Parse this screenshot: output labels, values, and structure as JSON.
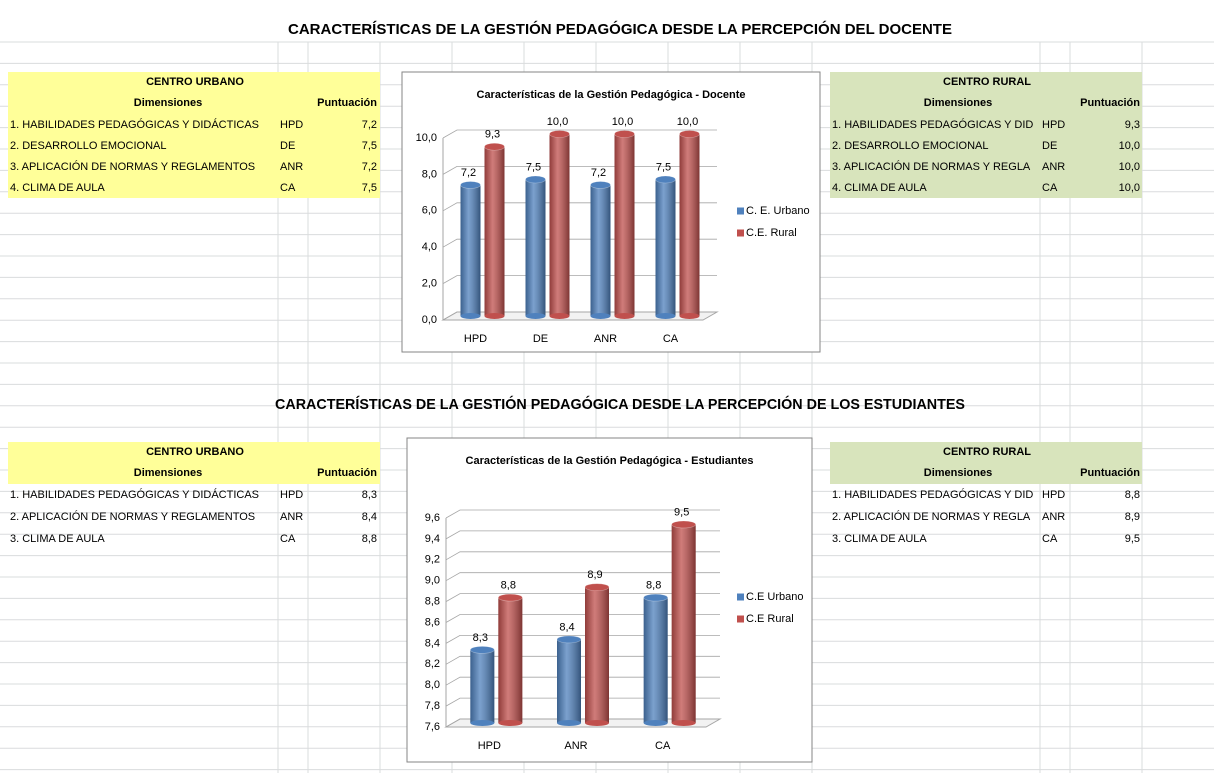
{
  "sections": [
    {
      "title": "CARACTERÍSTICAS DE LA GESTIÓN PEDAGÓGICA DESDE LA PERCEPCIÓN DEL DOCENTE",
      "urban": {
        "heading": "CENTRO URBANO",
        "columns": [
          "Dimensiones",
          "Puntuación"
        ],
        "rows": [
          [
            "1. HABILIDADES PEDAGÓGICAS Y DIDÁCTICAS",
            "HPD",
            "7,2"
          ],
          [
            "2. DESARROLLO EMOCIONAL",
            "DE",
            "7,5"
          ],
          [
            "3. APLICACIÓN DE NORMAS Y REGLAMENTOS",
            "ANR",
            "7,2"
          ],
          [
            "4. CLIMA DE AULA",
            "CA",
            "7,5"
          ]
        ]
      },
      "rural": {
        "heading": "CENTRO RURAL",
        "columns": [
          "Dimensiones",
          "Puntuación"
        ],
        "rows": [
          [
            "1. HABILIDADES PEDAGÓGICAS Y DID",
            "HPD",
            "9,3"
          ],
          [
            "2. DESARROLLO EMOCIONAL",
            "DE",
            "10,0"
          ],
          [
            "3. APLICACIÓN DE NORMAS Y REGLA",
            "ANR",
            "10,0"
          ],
          [
            "4. CLIMA DE AULA",
            "CA",
            "10,0"
          ]
        ]
      }
    },
    {
      "title": "CARACTERÍSTICAS DE LA GESTIÓN PEDAGÓGICA DESDE LA PERCEPCIÓN DE LOS ESTUDIANTES",
      "urban": {
        "heading": "CENTRO URBANO",
        "columns": [
          "Dimensiones",
          "Puntuación"
        ],
        "rows": [
          [
            "1. HABILIDADES PEDAGÓGICAS Y DIDÁCTICAS",
            "HPD",
            "8,3"
          ],
          [
            "2. APLICACIÓN DE NORMAS Y REGLAMENTOS",
            "ANR",
            "8,4"
          ],
          [
            "3. CLIMA DE AULA",
            "CA",
            "8,8"
          ]
        ]
      },
      "rural": {
        "heading": "CENTRO RURAL",
        "columns": [
          "Dimensiones",
          "Puntuación"
        ],
        "rows": [
          [
            "1. HABILIDADES PEDAGÓGICAS Y DID",
            "HPD",
            "8,8"
          ],
          [
            "2. APLICACIÓN DE NORMAS Y REGLA",
            "ANR",
            "8,9"
          ],
          [
            "3. CLIMA DE AULA",
            "CA",
            "9,5"
          ]
        ]
      }
    }
  ],
  "chart_data": [
    {
      "type": "bar",
      "title": "Características de la Gestión Pedagógica - Docente",
      "categories": [
        "HPD",
        "DE",
        "ANR",
        "CA"
      ],
      "series": [
        {
          "name": "C. E. Urbano",
          "color": "#4f81bd",
          "values": [
            7.2,
            7.5,
            7.2,
            7.5
          ],
          "value_labels": [
            "7,2",
            "7,5",
            "7,2",
            "7,5"
          ]
        },
        {
          "name": "C.E. Rural",
          "color": "#c0504d",
          "values": [
            9.3,
            10,
            10,
            10
          ],
          "value_labels": [
            "9,3",
            "10,0",
            "10,0",
            "10,0"
          ]
        }
      ],
      "ylim": [
        0,
        10
      ],
      "yticks": [
        {
          "value": 0,
          "label": "0,0"
        },
        {
          "value": 2,
          "label": "2,0"
        },
        {
          "value": 4,
          "label": "4,0"
        },
        {
          "value": 6,
          "label": "6,0"
        },
        {
          "value": 8,
          "label": "8,0"
        },
        {
          "value": 10,
          "label": "10,0"
        }
      ],
      "grid": true,
      "legend": "right"
    },
    {
      "type": "bar",
      "title": "Características de la Gestión Pedagógica - Estudiantes",
      "categories": [
        "HPD",
        "ANR",
        "CA"
      ],
      "series": [
        {
          "name": "C.E Urbano",
          "color": "#4f81bd",
          "values": [
            8.3,
            8.4,
            8.8
          ],
          "value_labels": [
            "8,3",
            "8,4",
            "8,8"
          ]
        },
        {
          "name": "C.E Rural",
          "color": "#c0504d",
          "values": [
            8.8,
            8.9,
            9.5
          ],
          "value_labels": [
            "8,8",
            "8,9",
            "9,5"
          ]
        }
      ],
      "ylim": [
        7.6,
        9.6
      ],
      "yticks": [
        {
          "value": 7.6,
          "label": "7,6"
        },
        {
          "value": 7.8,
          "label": "7,8"
        },
        {
          "value": 8.0,
          "label": "8,0"
        },
        {
          "value": 8.2,
          "label": "8,2"
        },
        {
          "value": 8.4,
          "label": "8,4"
        },
        {
          "value": 8.6,
          "label": "8,6"
        },
        {
          "value": 8.8,
          "label": "8,8"
        },
        {
          "value": 9.0,
          "label": "9,0"
        },
        {
          "value": 9.2,
          "label": "9,2"
        },
        {
          "value": 9.4,
          "label": "9,4"
        },
        {
          "value": 9.6,
          "label": "9,6"
        }
      ],
      "grid": true,
      "legend": "right"
    }
  ]
}
